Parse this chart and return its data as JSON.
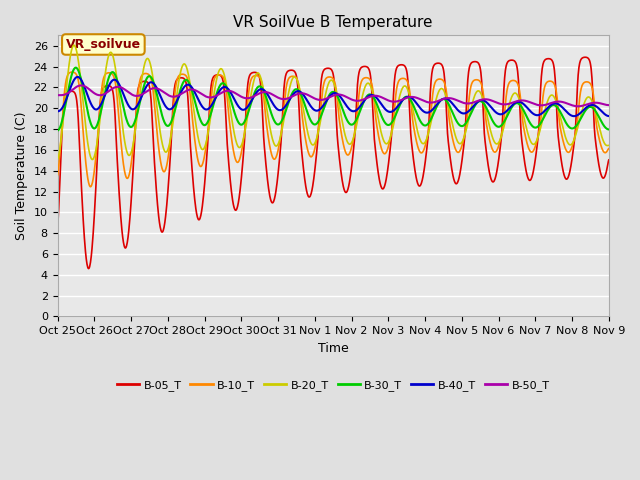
{
  "title": "VR SoilVue B Temperature",
  "xlabel": "Time",
  "ylabel": "Soil Temperature (C)",
  "ylim": [
    0,
    27
  ],
  "yticks": [
    0,
    2,
    4,
    6,
    8,
    10,
    12,
    14,
    16,
    18,
    20,
    22,
    24,
    26
  ],
  "xtick_labels": [
    "Oct 25",
    "Oct 26",
    "Oct 27",
    "Oct 28",
    "Oct 29",
    "Oct 30",
    "Oct 31",
    "Nov 1",
    "Nov 2",
    "Nov 3",
    "Nov 4",
    "Nov 5",
    "Nov 6",
    "Nov 7",
    "Nov 8",
    "Nov 9"
  ],
  "series_names": [
    "B-05_T",
    "B-10_T",
    "B-20_T",
    "B-30_T",
    "B-40_T",
    "B-50_T"
  ],
  "series_colors": [
    "#dd0000",
    "#ff8800",
    "#cccc00",
    "#00cc00",
    "#0000cc",
    "#aa00aa"
  ],
  "background_color": "#e0e0e0",
  "plot_background": "#e8e8e8",
  "grid_color": "#ffffff",
  "title_fontsize": 11,
  "axis_fontsize": 9,
  "tick_fontsize": 8,
  "legend_label": "VR_soilvue",
  "legend_box_color": "#ffffcc",
  "legend_box_edge": "#cc8800",
  "figwidth": 6.4,
  "figheight": 4.8,
  "dpi": 100
}
